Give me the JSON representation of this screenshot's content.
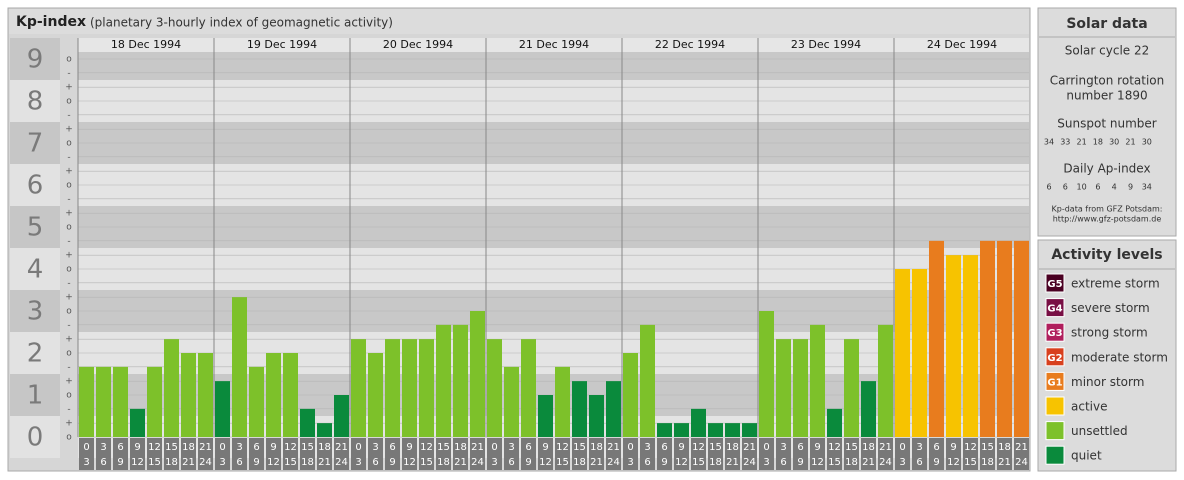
{
  "chart_data": {
    "type": "bar",
    "title": "Kp-index",
    "subtitle": "(planetary 3-hourly index of geomagnetic activity)",
    "ylim": [
      0,
      9.5
    ],
    "yticks": [
      0,
      1,
      2,
      3,
      4,
      5,
      6,
      7,
      8,
      9
    ],
    "minor_ticks": [
      {
        "value": 0,
        "label": "o"
      },
      {
        "value": 0.33,
        "label": "+"
      },
      {
        "value": 0.67,
        "label": "-"
      },
      {
        "value": 1,
        "label": "o"
      },
      {
        "value": 1.33,
        "label": "+"
      },
      {
        "value": 1.67,
        "label": "-"
      },
      {
        "value": 2,
        "label": "o"
      },
      {
        "value": 2.33,
        "label": "+"
      },
      {
        "value": 2.67,
        "label": "-"
      },
      {
        "value": 3,
        "label": "o"
      },
      {
        "value": 3.33,
        "label": "+"
      },
      {
        "value": 3.67,
        "label": "-"
      },
      {
        "value": 4,
        "label": "o"
      },
      {
        "value": 4.33,
        "label": "+"
      },
      {
        "value": 4.67,
        "label": "-"
      },
      {
        "value": 5,
        "label": "o"
      },
      {
        "value": 5.33,
        "label": "+"
      },
      {
        "value": 5.67,
        "label": "-"
      },
      {
        "value": 6,
        "label": "o"
      },
      {
        "value": 6.33,
        "label": "+"
      },
      {
        "value": 6.67,
        "label": "-"
      },
      {
        "value": 7,
        "label": "o"
      },
      {
        "value": 7.33,
        "label": "+"
      },
      {
        "value": 7.67,
        "label": "-"
      },
      {
        "value": 8,
        "label": "o"
      },
      {
        "value": 8.33,
        "label": "+"
      },
      {
        "value": 8.67,
        "label": "-"
      },
      {
        "value": 9,
        "label": "o"
      }
    ],
    "days": [
      "18 Dec 1994",
      "19 Dec 1994",
      "20 Dec 1994",
      "21 Dec 1994",
      "22 Dec 1994",
      "23 Dec 1994",
      "24 Dec 1994"
    ],
    "time_slots": [
      [
        "0",
        "3"
      ],
      [
        "3",
        "6"
      ],
      [
        "6",
        "9"
      ],
      [
        "9",
        "12"
      ],
      [
        "12",
        "15"
      ],
      [
        "15",
        "18"
      ],
      [
        "18",
        "21"
      ],
      [
        "21",
        "24"
      ]
    ],
    "values": [
      1.67,
      1.67,
      1.67,
      0.67,
      1.67,
      2.33,
      2,
      2,
      1.33,
      3.33,
      1.67,
      2,
      2,
      0.67,
      0.33,
      1,
      2.33,
      2,
      2.33,
      2.33,
      2.33,
      2.67,
      2.67,
      3,
      2.33,
      1.67,
      2.33,
      1,
      1.67,
      1.33,
      1,
      1.33,
      2,
      2.67,
      0.33,
      0.33,
      0.67,
      0.33,
      0.33,
      0.33,
      3,
      2.33,
      2.33,
      2.67,
      0.67,
      2.33,
      1.33,
      2.67,
      4,
      4,
      4.67,
      4.33,
      4.33,
      4.67,
      4.67,
      4.67
    ],
    "colors": [
      "#7dc12a",
      "#7dc12a",
      "#7dc12a",
      "#0a8a3c",
      "#7dc12a",
      "#7dc12a",
      "#7dc12a",
      "#7dc12a",
      "#0a8a3c",
      "#7dc12a",
      "#7dc12a",
      "#7dc12a",
      "#7dc12a",
      "#0a8a3c",
      "#0a8a3c",
      "#0a8a3c",
      "#7dc12a",
      "#7dc12a",
      "#7dc12a",
      "#7dc12a",
      "#7dc12a",
      "#7dc12a",
      "#7dc12a",
      "#7dc12a",
      "#7dc12a",
      "#7dc12a",
      "#7dc12a",
      "#0a8a3c",
      "#7dc12a",
      "#0a8a3c",
      "#0a8a3c",
      "#0a8a3c",
      "#7dc12a",
      "#7dc12a",
      "#0a8a3c",
      "#0a8a3c",
      "#0a8a3c",
      "#0a8a3c",
      "#0a8a3c",
      "#0a8a3c",
      "#7dc12a",
      "#7dc12a",
      "#7dc12a",
      "#7dc12a",
      "#0a8a3c",
      "#7dc12a",
      "#0a8a3c",
      "#7dc12a",
      "#f7c300",
      "#f7c300",
      "#e87c1e",
      "#f7c300",
      "#f7c300",
      "#e87c1e",
      "#e87c1e",
      "#e87c1e"
    ]
  },
  "solar_data": {
    "title": "Solar data",
    "cycle": "Solar cycle 22",
    "carrington": [
      "Carrington rotation",
      "number 1890"
    ],
    "sunspot_title": "Sunspot number",
    "sunspot": [
      34,
      33,
      21,
      18,
      30,
      21,
      30
    ],
    "ap_title": "Daily Ap-index",
    "ap": [
      6,
      6,
      10,
      6,
      4,
      9,
      34
    ],
    "source": [
      "Kp-data from GFZ Potsdam:",
      "http://www.gfz-potsdam.de"
    ]
  },
  "activity_levels": {
    "title": "Activity levels",
    "items": [
      {
        "badge": "G5",
        "label": "extreme storm",
        "color": "#4a0022"
      },
      {
        "badge": "G4",
        "label": "severe storm",
        "color": "#780f44"
      },
      {
        "badge": "G3",
        "label": "strong storm",
        "color": "#b01e5c"
      },
      {
        "badge": "G2",
        "label": "moderate storm",
        "color": "#d8401e"
      },
      {
        "badge": "G1",
        "label": "minor storm",
        "color": "#e87c1e"
      },
      {
        "badge": null,
        "label": "active",
        "color": "#f7c300"
      },
      {
        "badge": null,
        "label": "unsettled",
        "color": "#7dc12a"
      },
      {
        "badge": null,
        "label": "quiet",
        "color": "#0a8a3c"
      }
    ]
  }
}
